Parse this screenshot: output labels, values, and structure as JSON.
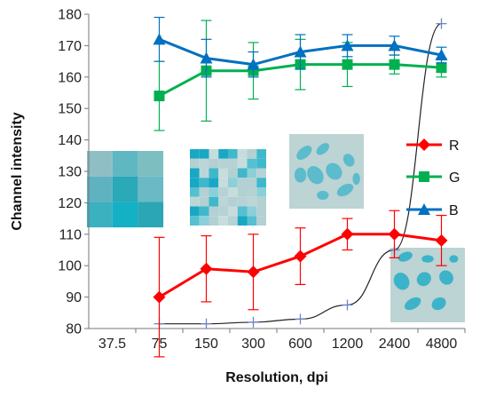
{
  "chart_data": {
    "type": "line",
    "xlabel": "Resolution, dpi",
    "ylabel": "Channel intensity",
    "categories": [
      "37.5",
      "75",
      "150",
      "300",
      "600",
      "1200",
      "2400",
      "4800"
    ],
    "ylim": [
      80,
      180
    ],
    "yticks": [
      80,
      90,
      100,
      110,
      120,
      130,
      140,
      150,
      160,
      170,
      180
    ],
    "grid": false,
    "legend_position": "right",
    "series": [
      {
        "name": "R",
        "color": "#ff0000",
        "marker": "diamond",
        "x": [
          "75",
          "150",
          "300",
          "600",
          "1200",
          "2400",
          "4800"
        ],
        "values": [
          90,
          99,
          98,
          103,
          110,
          110,
          108
        ],
        "error": [
          19,
          10.5,
          12,
          9,
          5,
          7.5,
          8
        ]
      },
      {
        "name": "G",
        "color": "#00b050",
        "marker": "square",
        "x": [
          "75",
          "150",
          "300",
          "600",
          "1200",
          "2400",
          "4800"
        ],
        "values": [
          154,
          162,
          162,
          164,
          164,
          164,
          163
        ],
        "error": [
          11,
          16,
          9,
          8,
          7,
          3,
          3
        ]
      },
      {
        "name": "B",
        "color": "#0070c0",
        "marker": "triangle",
        "x": [
          "75",
          "150",
          "300",
          "600",
          "1200",
          "2400",
          "4800"
        ],
        "values": [
          172,
          166,
          164,
          168,
          170,
          170,
          167
        ],
        "error": [
          7,
          6,
          4,
          5.5,
          3.5,
          3,
          2.5
        ]
      },
      {
        "color": "#222222",
        "marker": "plus",
        "x": [
          "75",
          "150",
          "300",
          "600",
          "1200",
          "2400",
          "4800"
        ],
        "values": [
          81.5,
          81.5,
          82,
          83,
          87.5,
          105,
          177
        ]
      }
    ],
    "inset_images": [
      {
        "name": "pixel-grid-3x3",
        "resolution": "37.5-75"
      },
      {
        "name": "pixel-grid-8x8",
        "resolution": "150-300"
      },
      {
        "name": "blurred-cells",
        "resolution": "600-1200"
      },
      {
        "name": "sharp-cells",
        "resolution": "2400-4800"
      }
    ]
  }
}
